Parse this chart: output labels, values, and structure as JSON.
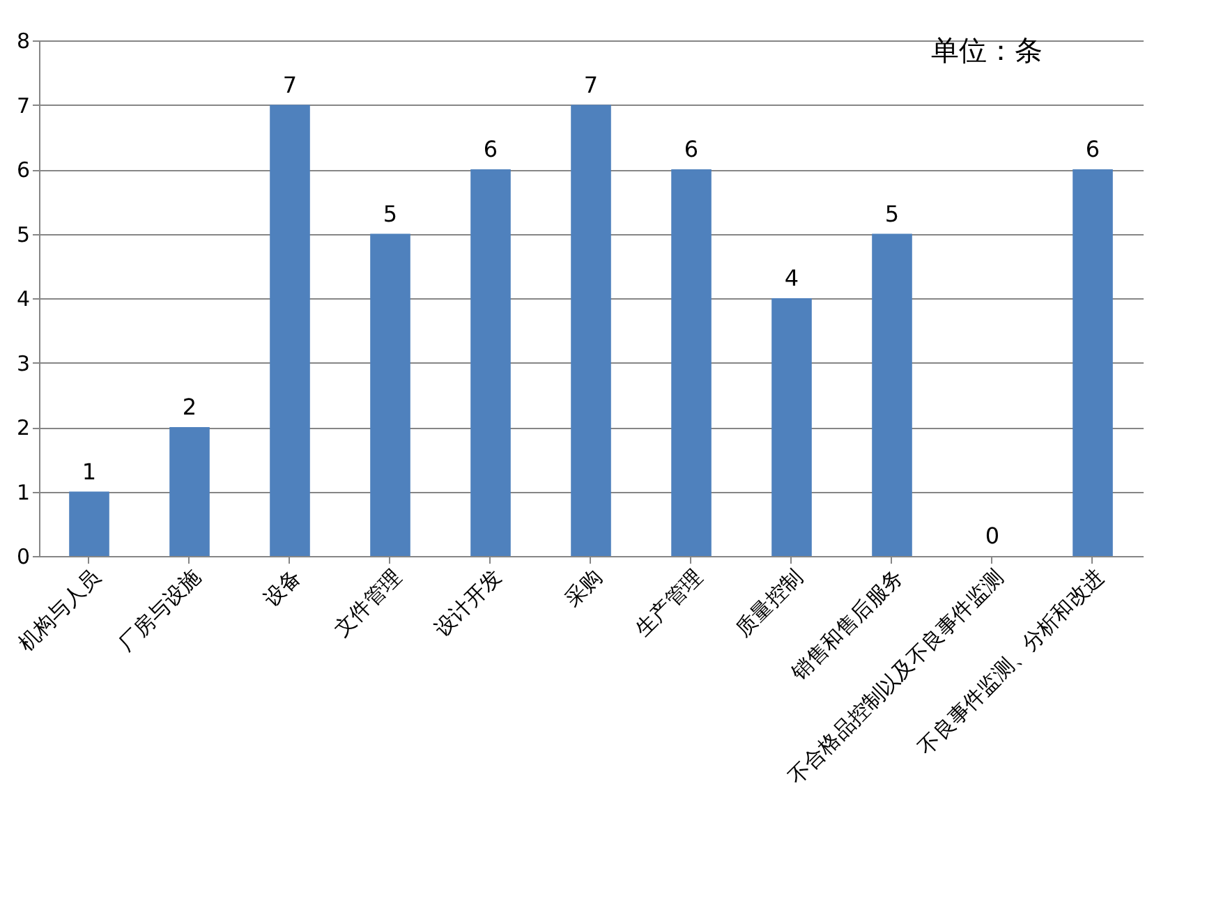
{
  "chart_data": {
    "type": "bar",
    "categories": [
      "机构与人员",
      "厂房与设施",
      "设备",
      "文件管理",
      "设计开发",
      "采购",
      "生产管理",
      "质量控制",
      "销售和售后服务",
      "不合格品控制以及不良事件监测",
      "不良事件监测、分析和改进"
    ],
    "values": [
      1,
      2,
      7,
      5,
      6,
      7,
      6,
      4,
      5,
      0,
      6
    ],
    "color": "#4f81bd",
    "ylim": [
      0,
      8
    ],
    "yticks": [
      0,
      1,
      2,
      3,
      4,
      5,
      6,
      7,
      8
    ],
    "grid": "y",
    "data_labels": true,
    "annotations": [
      "单位：条"
    ]
  }
}
